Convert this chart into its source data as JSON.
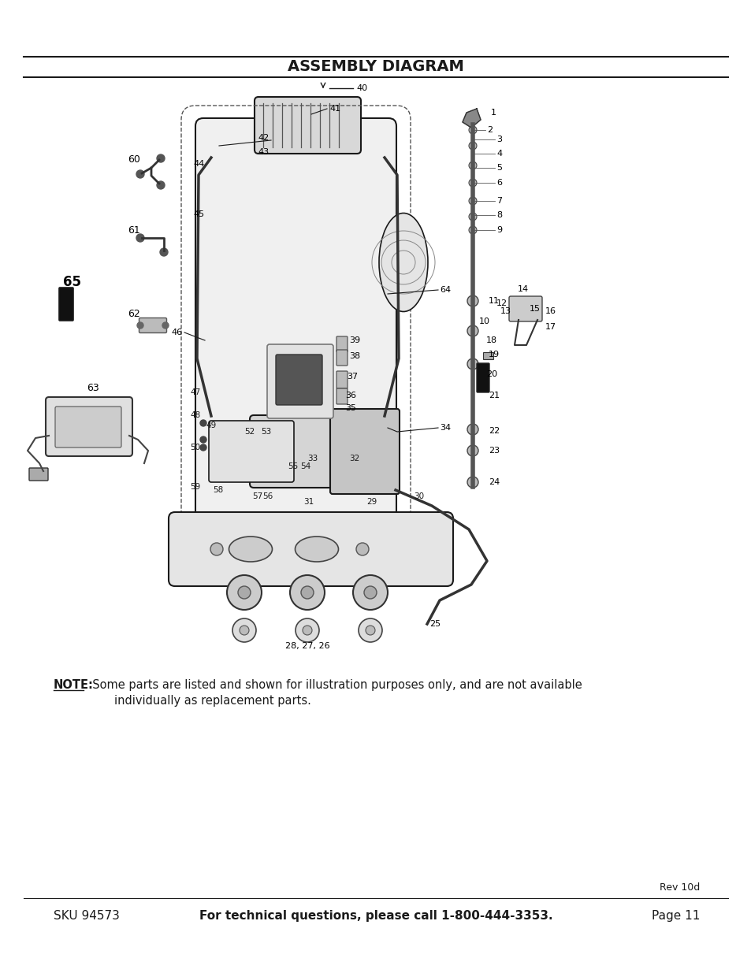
{
  "title": "ASSEMBLY DIAGRAM",
  "bg_color": "#ffffff",
  "title_color": "#1a1a1a",
  "line_color": "#1a1a1a",
  "note_label": "NOTE:",
  "note_text1": "  Some parts are listed and shown for illustration purposes only, and are not available",
  "note_text2": "        individually as replacement parts.",
  "footer_sku": "SKU 94573",
  "footer_center": "For technical questions, please call 1-800-444-3353.",
  "footer_page": "Page 11",
  "footer_rev": "Rev 10d",
  "fig_width": 9.54,
  "fig_height": 12.35,
  "title_fontsize": 14,
  "note_fontsize": 10.5,
  "footer_fontsize": 11
}
